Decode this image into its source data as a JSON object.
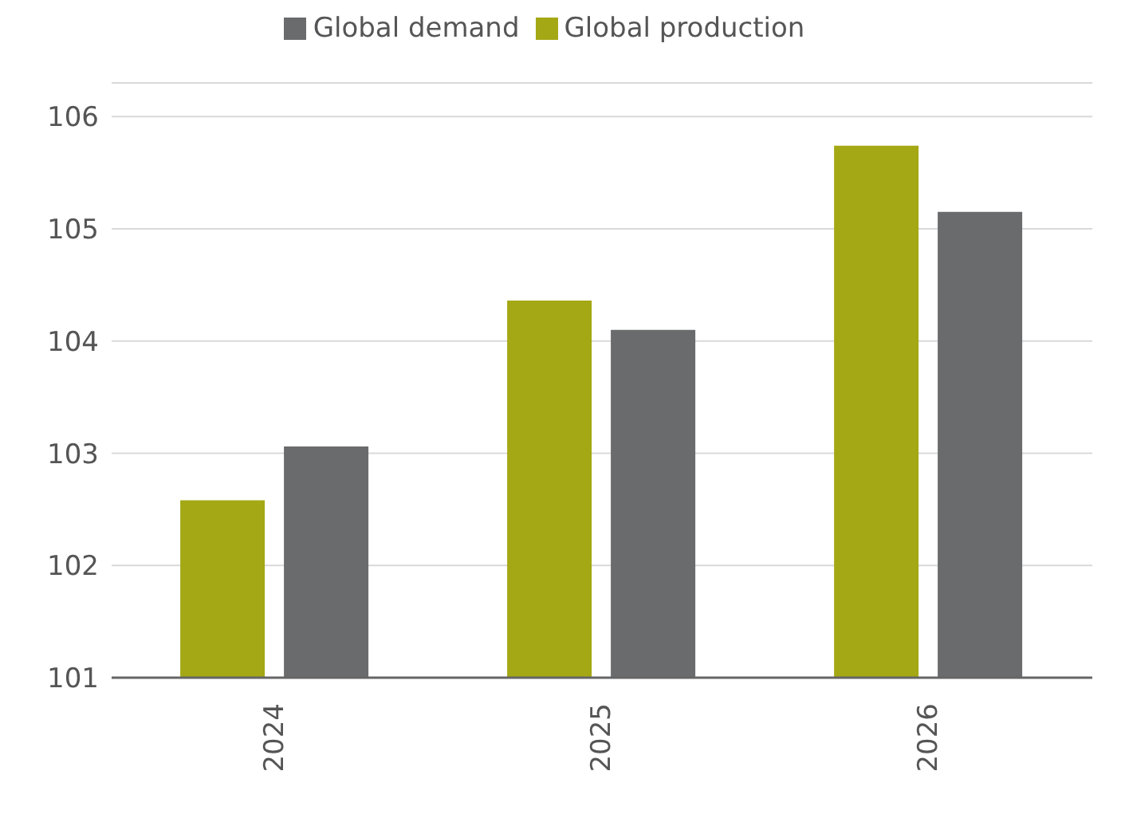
{
  "chart_data": {
    "type": "bar",
    "categories": [
      "2024",
      "2025",
      "2026"
    ],
    "series": [
      {
        "name": "Global production",
        "color": "#a4a814",
        "values": [
          102.58,
          104.36,
          105.74
        ]
      },
      {
        "name": "Global demand",
        "color": "#6a6b6d",
        "values": [
          103.06,
          104.1,
          105.15
        ]
      }
    ],
    "ylim": [
      101,
      106.3
    ],
    "yticks": [
      101,
      102,
      103,
      104,
      105,
      106
    ],
    "grid": "y",
    "legend": "top"
  }
}
